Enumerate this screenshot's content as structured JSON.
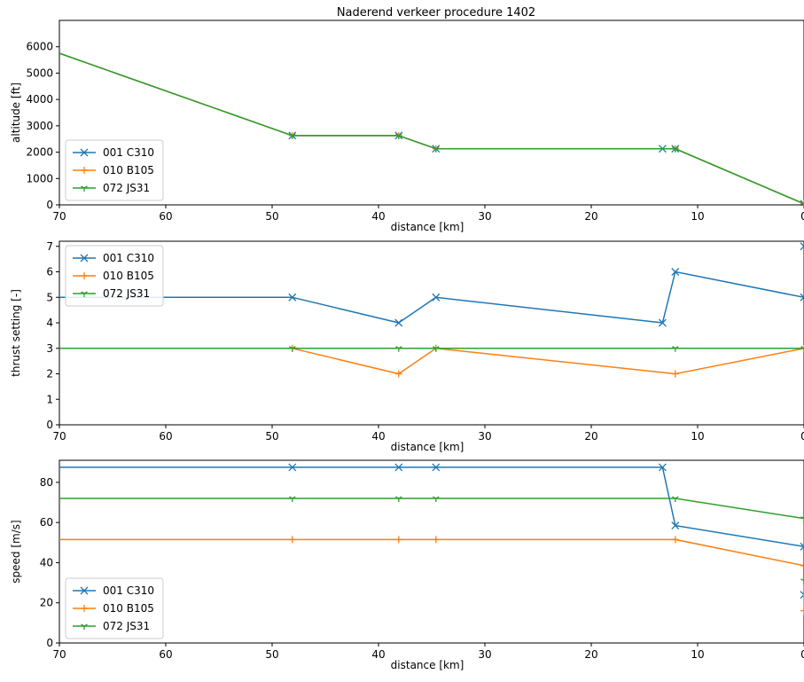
{
  "title": "Naderend verkeer procedure 1402",
  "colors": {
    "c001": "#1f77b4",
    "c010": "#ff7f0e",
    "c072": "#2ca02c"
  },
  "chart_data": [
    {
      "type": "line",
      "xlabel": "distance [km]",
      "ylabel": "altitude [ft]",
      "xlim": [
        70,
        0
      ],
      "ylim": [
        0,
        7000
      ],
      "xticks": [
        70,
        60,
        50,
        40,
        30,
        20,
        10,
        0
      ],
      "yticks": [
        0,
        1000,
        2000,
        3000,
        4000,
        5000,
        6000
      ],
      "legend": "lower-left",
      "series": [
        {
          "name": "001 C310",
          "marker": "x",
          "color": "#1f77b4",
          "points": [
            [
              70,
              5750
            ],
            [
              48.1,
              2630
            ],
            [
              38.1,
              2630
            ],
            [
              34.6,
              2130
            ],
            [
              13.3,
              2130
            ],
            [
              12.1,
              2130
            ],
            [
              0,
              40
            ]
          ]
        },
        {
          "name": "010 B105",
          "marker": "+",
          "color": "#ff7f0e",
          "points": [
            [
              70,
              5750
            ],
            [
              48.1,
              2630
            ],
            [
              38.1,
              2630
            ],
            [
              34.6,
              2130
            ],
            [
              12.1,
              2130
            ],
            [
              0,
              40
            ]
          ]
        },
        {
          "name": "072 JS31",
          "marker": "tri_down",
          "color": "#2ca02c",
          "points": [
            [
              70,
              5750
            ],
            [
              48.1,
              2630
            ],
            [
              38.1,
              2630
            ],
            [
              34.6,
              2130
            ],
            [
              12.1,
              2130
            ],
            [
              0,
              40
            ]
          ]
        }
      ]
    },
    {
      "type": "line",
      "xlabel": "distance [km]",
      "ylabel": "thrust setting [-]",
      "xlim": [
        70,
        0
      ],
      "ylim": [
        0,
        7.2
      ],
      "xticks": [
        70,
        60,
        50,
        40,
        30,
        20,
        10,
        0
      ],
      "yticks": [
        0,
        1,
        2,
        3,
        4,
        5,
        6,
        7
      ],
      "legend": "upper-left",
      "series": [
        {
          "name": "001 C310",
          "marker": "x",
          "color": "#1f77b4",
          "points": [
            [
              70,
              5
            ],
            [
              48.1,
              5
            ],
            [
              38.1,
              4
            ],
            [
              34.6,
              5
            ],
            [
              13.3,
              4
            ],
            [
              12.1,
              6
            ],
            [
              0,
              5
            ],
            [
              0,
              7
            ]
          ]
        },
        {
          "name": "010 B105",
          "marker": "+",
          "color": "#ff7f0e",
          "points": [
            [
              70,
              3
            ],
            [
              48.1,
              3
            ],
            [
              38.1,
              2
            ],
            [
              34.6,
              3
            ],
            [
              12.1,
              2
            ],
            [
              0,
              3
            ]
          ]
        },
        {
          "name": "072 JS31",
          "marker": "tri_down",
          "color": "#2ca02c",
          "points": [
            [
              70,
              3
            ],
            [
              48.1,
              3
            ],
            [
              38.1,
              3
            ],
            [
              34.6,
              3
            ],
            [
              12.1,
              3
            ],
            [
              0,
              3
            ]
          ]
        }
      ]
    },
    {
      "type": "line",
      "xlabel": "distance [km]",
      "ylabel": "speed [m/s]",
      "xlim": [
        70,
        0
      ],
      "ylim": [
        0,
        91
      ],
      "xticks": [
        70,
        60,
        50,
        40,
        30,
        20,
        10,
        0
      ],
      "yticks": [
        0,
        20,
        40,
        60,
        80
      ],
      "legend": "lower-left",
      "series": [
        {
          "name": "001 C310",
          "marker": "x",
          "color": "#1f77b4",
          "points": [
            [
              70,
              87.5
            ],
            [
              48.1,
              87.5
            ],
            [
              38.1,
              87.5
            ],
            [
              34.6,
              87.5
            ],
            [
              13.3,
              87.5
            ],
            [
              12.1,
              58.5
            ],
            [
              0,
              48
            ],
            [
              0,
              24
            ]
          ]
        },
        {
          "name": "010 B105",
          "marker": "+",
          "color": "#ff7f0e",
          "points": [
            [
              70,
              51.5
            ],
            [
              48.1,
              51.5
            ],
            [
              38.1,
              51.5
            ],
            [
              34.6,
              51.5
            ],
            [
              12.1,
              51.5
            ],
            [
              0,
              38.5
            ],
            [
              0,
              16
            ]
          ]
        },
        {
          "name": "072 JS31",
          "marker": "tri_down",
          "color": "#2ca02c",
          "points": [
            [
              70,
              72
            ],
            [
              48.1,
              72
            ],
            [
              38.1,
              72
            ],
            [
              34.6,
              72
            ],
            [
              12.1,
              72
            ],
            [
              0,
              62
            ],
            [
              0,
              31
            ]
          ]
        }
      ]
    }
  ]
}
